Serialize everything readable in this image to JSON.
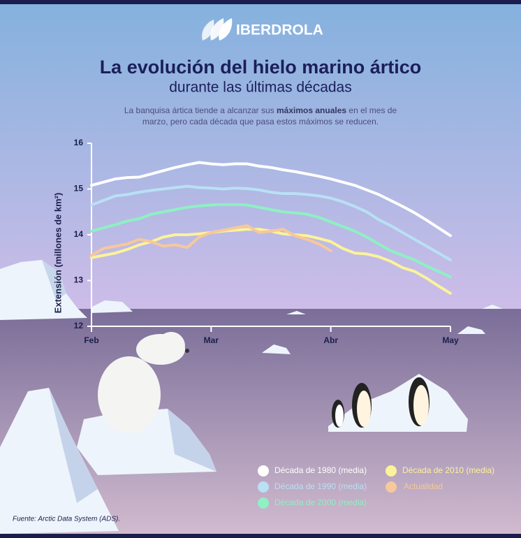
{
  "chart_data": {
    "type": "line",
    "brand": "IBERDROLA",
    "title": "La evolución del hielo marino ártico",
    "subtitle": "durante las últimas décadas",
    "description": [
      "La banquisa ártica tiende a alcanzar sus ",
      "máximos anuales",
      " en el mes de marzo, pero cada década que pasa estos máximos se reducen."
    ],
    "ylabel": "Extensión (millones de km²)",
    "source": "Fuente: Arctic Data System (ADS).",
    "x": [
      0,
      0.1,
      0.2,
      0.3,
      0.4,
      0.5,
      0.6,
      0.7,
      0.8,
      0.9,
      1,
      1.1,
      1.2,
      1.3,
      1.4,
      1.5,
      1.6,
      1.7,
      1.8,
      1.9,
      2,
      2.1,
      2.2,
      2.3,
      2.4,
      2.5,
      2.6,
      2.7,
      2.8,
      2.9,
      3
    ],
    "xlim": [
      0,
      3
    ],
    "xticks": [
      {
        "value": 0,
        "label": "Feb"
      },
      {
        "value": 1,
        "label": "Mar"
      },
      {
        "value": 2,
        "label": "Abr"
      },
      {
        "value": 3,
        "label": "May"
      }
    ],
    "ylim": [
      12,
      16
    ],
    "yticks": [
      12,
      13,
      14,
      15,
      16
    ],
    "series": [
      {
        "name": "Década de 1980 (media)",
        "color": "#ffffff",
        "values": [
          15.08,
          15.15,
          15.22,
          15.25,
          15.26,
          15.33,
          15.4,
          15.47,
          15.53,
          15.58,
          15.55,
          15.53,
          15.55,
          15.55,
          15.5,
          15.47,
          15.42,
          15.38,
          15.33,
          15.28,
          15.22,
          15.15,
          15.08,
          14.98,
          14.88,
          14.75,
          14.62,
          14.48,
          14.32,
          14.15,
          13.98
        ]
      },
      {
        "name": "Década de 1990 (media)",
        "color": "#b9e0f5",
        "values": [
          14.65,
          14.75,
          14.85,
          14.88,
          14.93,
          14.97,
          15.0,
          15.03,
          15.06,
          15.03,
          15.02,
          15.0,
          15.02,
          15.01,
          14.98,
          14.93,
          14.9,
          14.9,
          14.88,
          14.85,
          14.8,
          14.72,
          14.62,
          14.5,
          14.33,
          14.2,
          14.05,
          13.9,
          13.75,
          13.6,
          13.45
        ]
      },
      {
        "name": "Década de 2000 (media)",
        "color": "#8ef0c4",
        "values": [
          14.08,
          14.15,
          14.22,
          14.3,
          14.35,
          14.45,
          14.5,
          14.55,
          14.6,
          14.63,
          14.65,
          14.66,
          14.66,
          14.65,
          14.6,
          14.55,
          14.5,
          14.48,
          14.45,
          14.38,
          14.28,
          14.18,
          14.08,
          13.95,
          13.8,
          13.65,
          13.55,
          13.45,
          13.32,
          13.2,
          13.08
        ]
      },
      {
        "name": "Década de 2010 (media)",
        "color": "#fbf39a",
        "values": [
          13.5,
          13.55,
          13.6,
          13.68,
          13.78,
          13.85,
          13.95,
          14.0,
          14.0,
          14.02,
          14.05,
          14.08,
          14.1,
          14.12,
          14.12,
          14.08,
          14.02,
          14.0,
          13.98,
          13.92,
          13.85,
          13.7,
          13.6,
          13.58,
          13.52,
          13.42,
          13.28,
          13.2,
          13.05,
          12.88,
          12.72
        ]
      },
      {
        "name": "Actualidad",
        "color": "#f6c89b",
        "values": [
          13.55,
          13.7,
          13.75,
          13.8,
          13.9,
          13.85,
          13.75,
          13.78,
          13.72,
          13.95,
          14.05,
          14.1,
          14.15,
          14.2,
          14.05,
          14.08,
          14.12,
          13.98,
          13.9,
          13.8,
          13.65,
          null,
          null,
          null,
          null,
          null,
          null,
          null,
          null,
          null,
          null
        ]
      }
    ]
  }
}
